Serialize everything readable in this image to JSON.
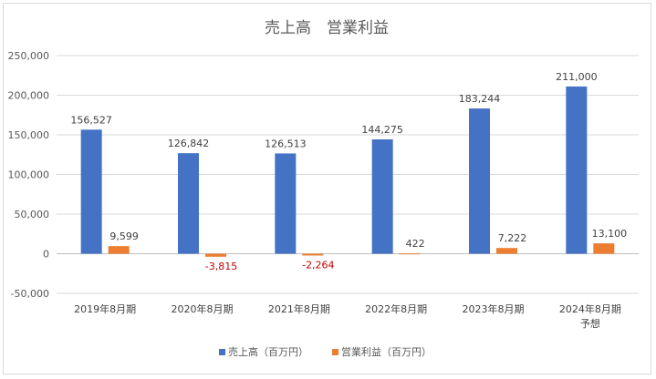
{
  "chart_data": {
    "type": "bar",
    "title": "売上高　営業利益",
    "categories": [
      [
        "2019年8月期"
      ],
      [
        "2020年8月期"
      ],
      [
        "2021年8月期"
      ],
      [
        "2022年8月期"
      ],
      [
        "2023年8月期"
      ],
      [
        "2024年8月期",
        "予想"
      ]
    ],
    "series": [
      {
        "name": "売上高（百万円）",
        "color": "#4472c4",
        "values": [
          156527,
          126842,
          126513,
          144275,
          183244,
          211000
        ],
        "labels": [
          "156,527",
          "126,842",
          "126,513",
          "144,275",
          "183,244",
          "211,000"
        ]
      },
      {
        "name": "営業利益（百万円）",
        "color": "#ed7d31",
        "values": [
          9599,
          -3815,
          -2264,
          422,
          7222,
          13100
        ],
        "labels": [
          "9,599",
          "-3,815",
          "-2,264",
          "422",
          "7,222",
          "13,100"
        ]
      }
    ],
    "negative_label_color": "#c00000",
    "ylim": [
      -50000,
      250000
    ],
    "yticks": [
      {
        "value": 250000,
        "label": "250,000"
      },
      {
        "value": 200000,
        "label": "200,000"
      },
      {
        "value": 150000,
        "label": "150,000"
      },
      {
        "value": 100000,
        "label": "100,000"
      },
      {
        "value": 50000,
        "label": "50,000"
      },
      {
        "value": 0,
        "label": "0"
      },
      {
        "value": -50000,
        "label": "-50,000"
      }
    ],
    "grid": true,
    "legend": "bottom"
  }
}
